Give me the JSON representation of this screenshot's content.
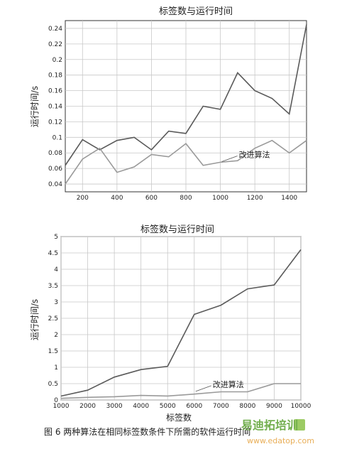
{
  "chart_data": [
    {
      "type": "line",
      "title": "标签数与运行时间",
      "xlabel": "",
      "ylabel": "运行时间/s",
      "x": [
        100,
        200,
        300,
        400,
        500,
        600,
        700,
        800,
        900,
        1000,
        1100,
        1200,
        1300,
        1400,
        1500
      ],
      "xticks": [
        "200",
        "400",
        "600",
        "800",
        "1000",
        "1200",
        "1400"
      ],
      "xtick_values": [
        200,
        400,
        600,
        800,
        1000,
        1200,
        1400
      ],
      "xlim": [
        100,
        1500
      ],
      "yticks": [
        "0.04",
        "0.06",
        "0.08",
        "0.1",
        "0.12",
        "0.14",
        "0.16",
        "0.18",
        "0.2",
        "0.22",
        "0.24"
      ],
      "ytick_values": [
        0.04,
        0.06,
        0.08,
        0.1,
        0.12,
        0.14,
        0.16,
        0.18,
        0.2,
        0.22,
        0.24
      ],
      "ylim": [
        0.03,
        0.25
      ],
      "grid": true,
      "series": [
        {
          "name": "",
          "color": "#5a5a5a",
          "values": [
            0.064,
            0.097,
            0.084,
            0.096,
            0.1,
            0.084,
            0.108,
            0.105,
            0.14,
            0.136,
            0.183,
            0.16,
            0.15,
            0.13,
            0.245
          ]
        },
        {
          "name": "改进算法",
          "color": "#9a9a9a",
          "values": [
            0.04,
            0.072,
            0.086,
            0.055,
            0.062,
            0.078,
            0.075,
            0.092,
            0.064,
            0.068,
            0.07,
            0.086,
            0.096,
            0.08,
            0.096
          ]
        }
      ],
      "annotation": {
        "text": "改进算法",
        "x": 1000,
        "y": 0.067
      }
    },
    {
      "type": "line",
      "title": "标签数与运行时间",
      "xlabel": "标签数",
      "ylabel": "运行时间/s",
      "x": [
        1000,
        2000,
        3000,
        4000,
        5000,
        6000,
        7000,
        8000,
        9000,
        10000
      ],
      "xticks": [
        "1000",
        "2000",
        "3000",
        "4000",
        "5000",
        "6000",
        "7000",
        "8000",
        "9000",
        "10000"
      ],
      "xtick_values": [
        1000,
        2000,
        3000,
        4000,
        5000,
        6000,
        7000,
        8000,
        9000,
        10000
      ],
      "xlim": [
        1000,
        10000
      ],
      "yticks": [
        "0",
        "0.5",
        "1",
        "1.5",
        "2",
        "2.5",
        "3",
        "3.5",
        "4",
        "4.5",
        "5"
      ],
      "ytick_values": [
        0,
        0.5,
        1,
        1.5,
        2,
        2.5,
        3,
        3.5,
        4,
        4.5,
        5
      ],
      "ylim": [
        0,
        5
      ],
      "grid": true,
      "series": [
        {
          "name": "",
          "color": "#5a5a5a",
          "values": [
            0.12,
            0.3,
            0.7,
            0.93,
            1.03,
            2.62,
            2.9,
            3.4,
            3.52,
            4.6
          ]
        },
        {
          "name": "改进算法",
          "color": "#9a9a9a",
          "values": [
            0.05,
            0.08,
            0.1,
            0.14,
            0.12,
            0.18,
            0.25,
            0.25,
            0.5,
            0.5
          ]
        }
      ],
      "annotation": {
        "text": "改进算法",
        "x": 6000,
        "y": 0.22
      }
    }
  ],
  "caption": "图 6 两种算法在相同标签数条件下所需的软件运行时间",
  "watermark": {
    "brand": "易迪拓培训",
    "url": "www.edatop.com"
  }
}
